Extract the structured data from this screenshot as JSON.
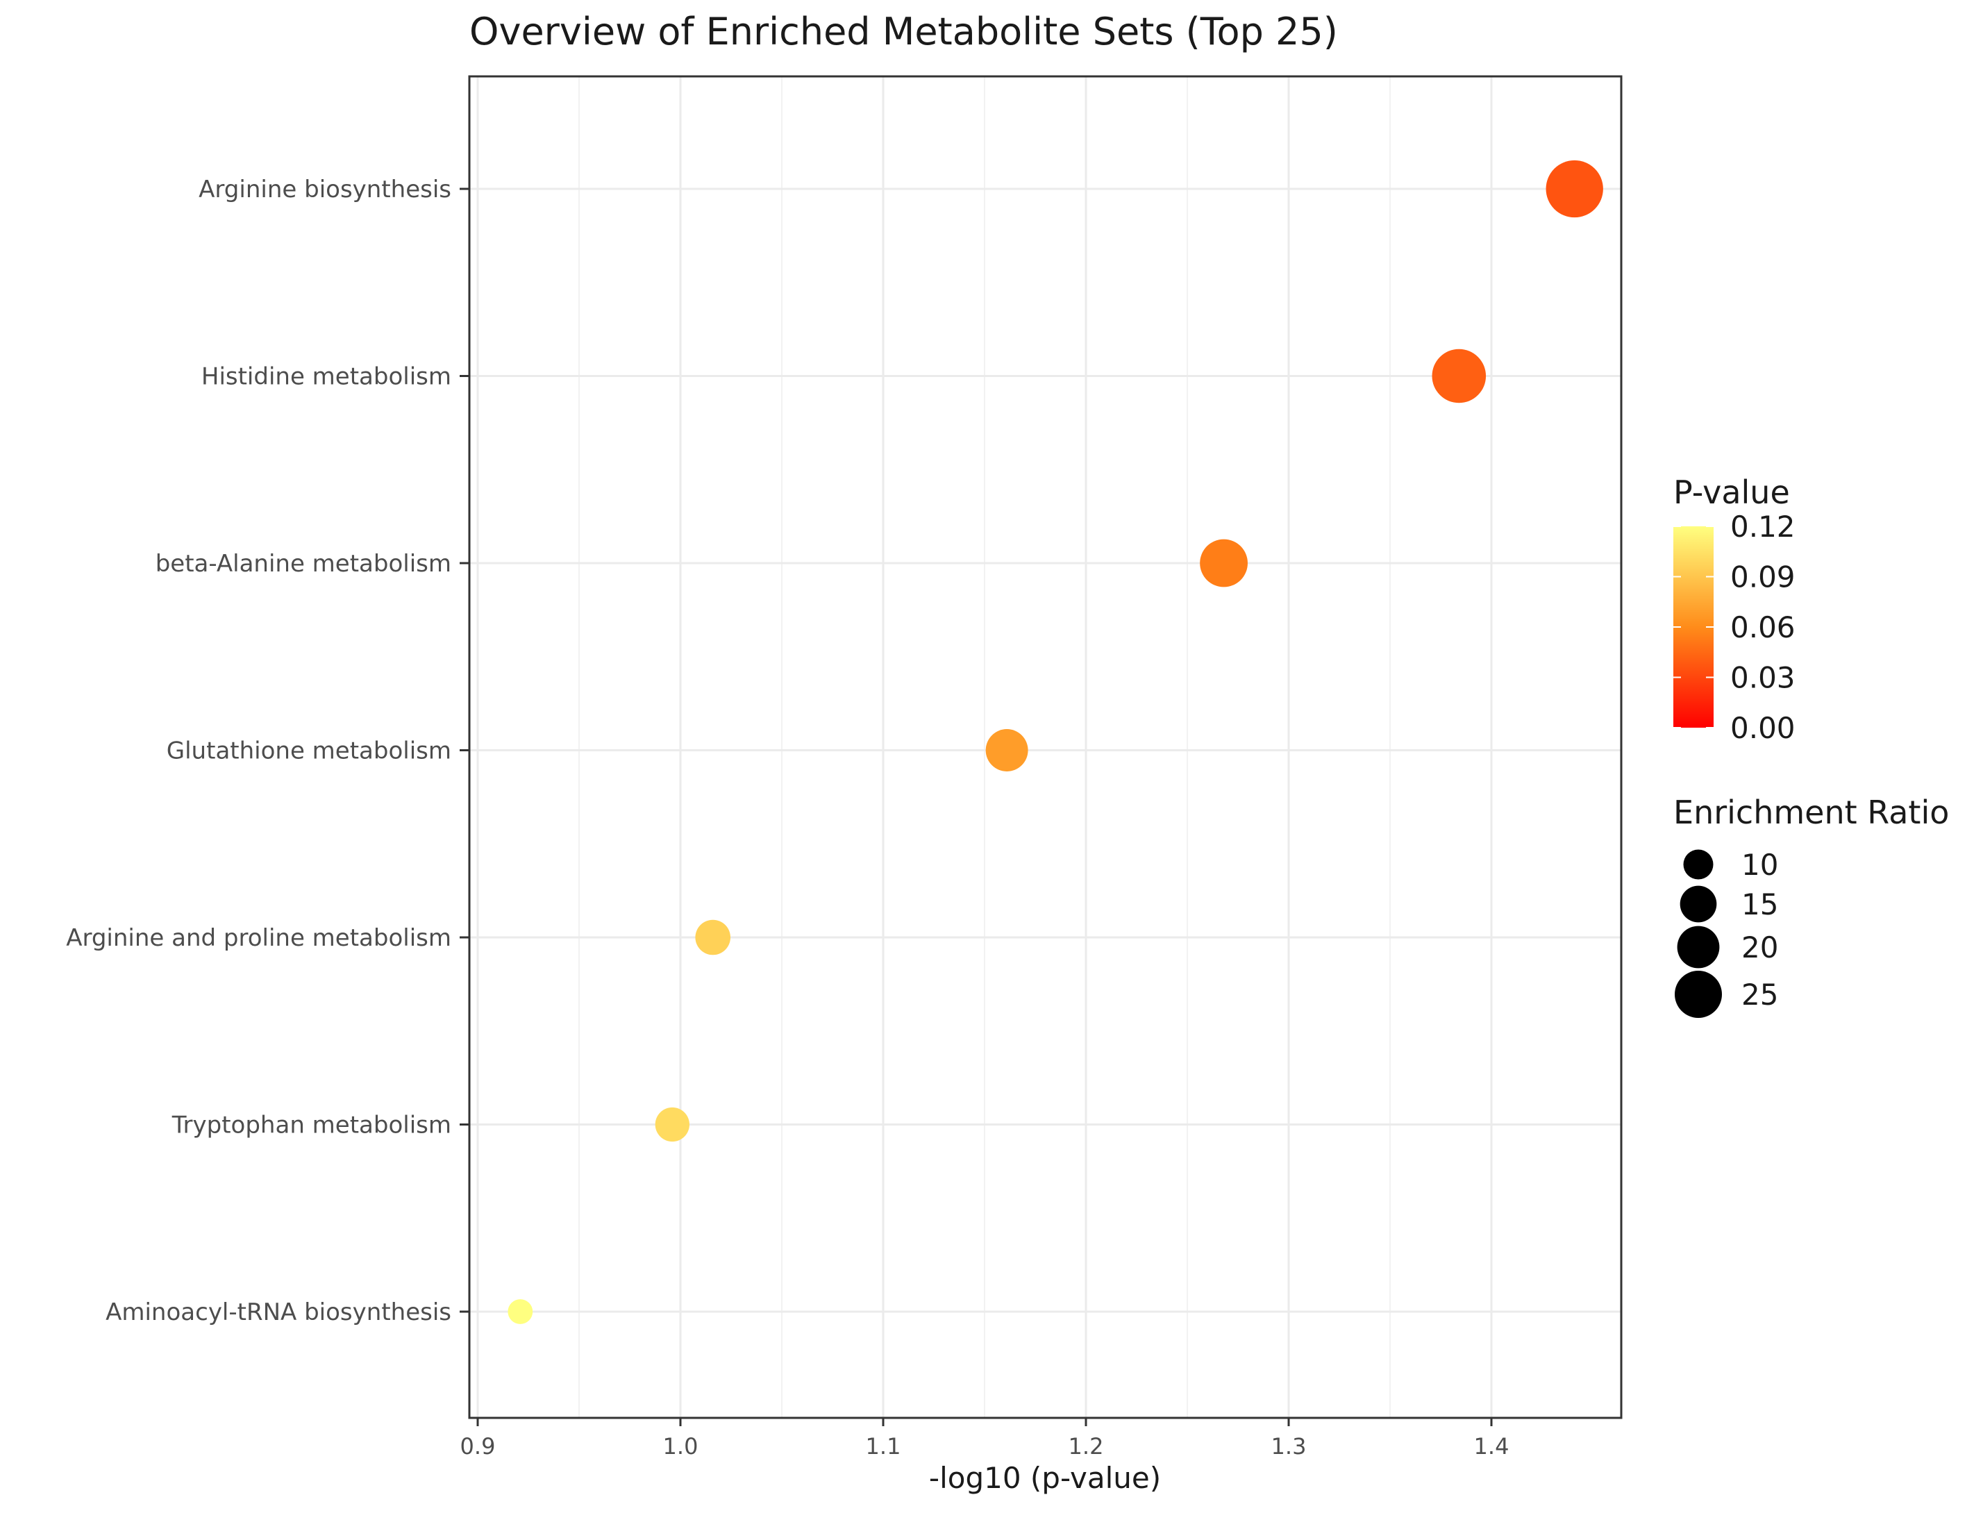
{
  "chart_data": {
    "type": "scatter",
    "title": "Overview of Enriched Metabolite Sets (Top 25)",
    "xlabel": "-log10 (p-value)",
    "ylabel": "",
    "xlim": [
      0.9,
      1.45
    ],
    "x_ticks": [
      "0.9",
      "1.0",
      "1.1",
      "1.2",
      "1.3",
      "1.4"
    ],
    "grid": true,
    "categories": [
      "Arginine biosynthesis",
      "Histidine metabolism",
      "beta-Alanine metabolism",
      "Glutathione metabolism",
      "Arginine and proline metabolism",
      "Tryptophan metabolism",
      "Aminoacyl-tRNA biosynthesis"
    ],
    "x": [
      1.441,
      1.384,
      1.268,
      1.161,
      1.016,
      0.996,
      0.921
    ],
    "p_value": [
      0.036,
      0.041,
      0.054,
      0.069,
      0.096,
      0.101,
      0.12
    ],
    "enrichment_ratio": [
      26.5,
      23.5,
      18.5,
      14.5,
      10,
      9.5,
      5
    ],
    "color_legend": {
      "title": "P-value",
      "ticks": [
        "0.12",
        "0.09",
        "0.06",
        "0.03",
        "0.00"
      ],
      "range": [
        0,
        0.12
      ],
      "low_color": "#ff0000",
      "mid_color": "#ff8c1a",
      "high_color": "#ffff80"
    },
    "size_legend": {
      "title": "Enrichment Ratio",
      "entries": [
        "10",
        "15",
        "20",
        "25"
      ]
    }
  }
}
